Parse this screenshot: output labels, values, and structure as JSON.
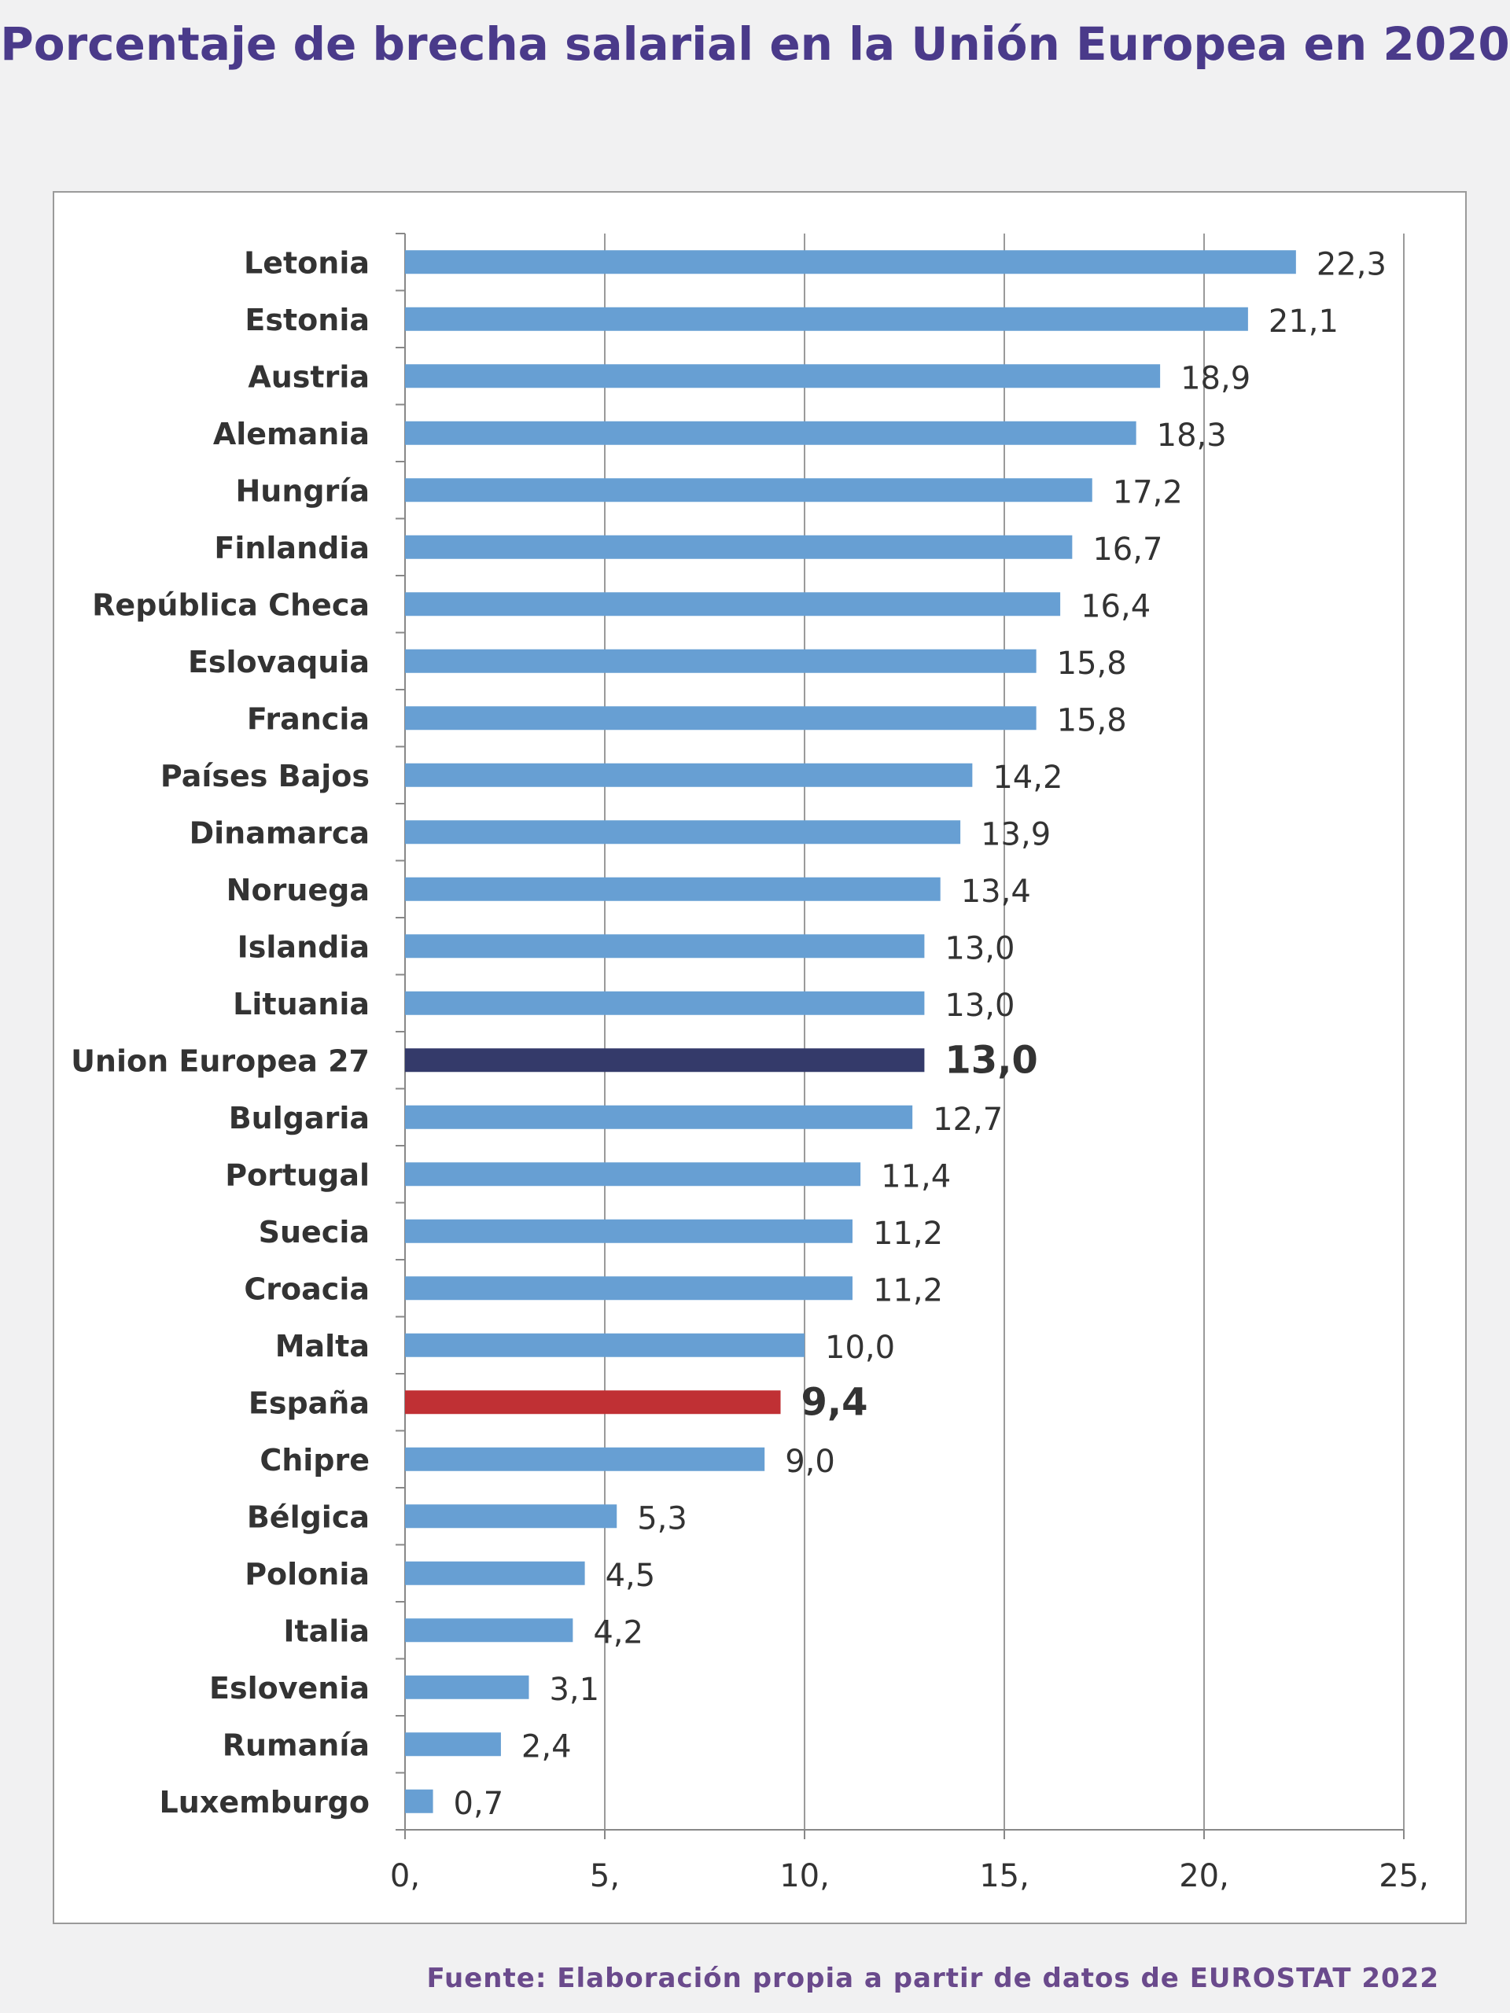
{
  "title": "Porcentaje de brecha salarial en la Unión Europea en 2020",
  "source": "Fuente: Elaboración propia a partir de datos de EUROSTAT 2022",
  "colors": {
    "bar": "#679fd3",
    "highlight_eu": "#343a6a",
    "highlight_spain": "#c03034",
    "title": "#4a3a8a"
  },
  "chart_data": {
    "type": "bar",
    "orientation": "horizontal",
    "title": "",
    "xlabel": "",
    "ylabel": "",
    "xlim": [
      0,
      25
    ],
    "x_ticks": [
      0,
      5,
      10,
      15,
      20,
      25
    ],
    "x_tick_labels": [
      "0,",
      "5,",
      "10,",
      "15,",
      "20,",
      "25,"
    ],
    "grid": "vertical",
    "categories": [
      "Letonia",
      "Estonia",
      "Austria",
      "Alemania",
      "Hungría",
      "Finlandia",
      "República Checa",
      "Eslovaquia",
      "Francia",
      "Países Bajos",
      "Dinamarca",
      "Noruega",
      "Islandia",
      "Lituania",
      "Union Europea 27",
      "Bulgaria",
      "Portugal",
      "Suecia",
      "Croacia",
      "Malta",
      "España",
      "Chipre",
      "Bélgica",
      "Polonia",
      "Italia",
      "Eslovenia",
      "Rumanía",
      "Luxemburgo"
    ],
    "values": [
      22.3,
      21.1,
      18.9,
      18.3,
      17.2,
      16.7,
      16.4,
      15.8,
      15.8,
      14.2,
      13.9,
      13.4,
      13.0,
      13.0,
      13.0,
      12.7,
      11.4,
      11.2,
      11.2,
      10.0,
      9.4,
      9.0,
      5.3,
      4.5,
      4.2,
      3.1,
      2.4,
      0.7
    ],
    "data_labels": [
      "22,3",
      "21,1",
      "18,9",
      "18,3",
      "17,2",
      "16,7",
      "16,4",
      "15,8",
      "15,8",
      "14,2",
      "13,9",
      "13,4",
      "13,0",
      "13,0",
      "13,0",
      "12,7",
      "11,4",
      "11,2",
      "11,2",
      "10,0",
      "9,4",
      "9,0",
      "5,3",
      "4,5",
      "4,2",
      "3,1",
      "2,4",
      "0,7"
    ],
    "highlighted": {
      "Union Europea 27": "highlight_eu",
      "España": "highlight_spain"
    }
  }
}
